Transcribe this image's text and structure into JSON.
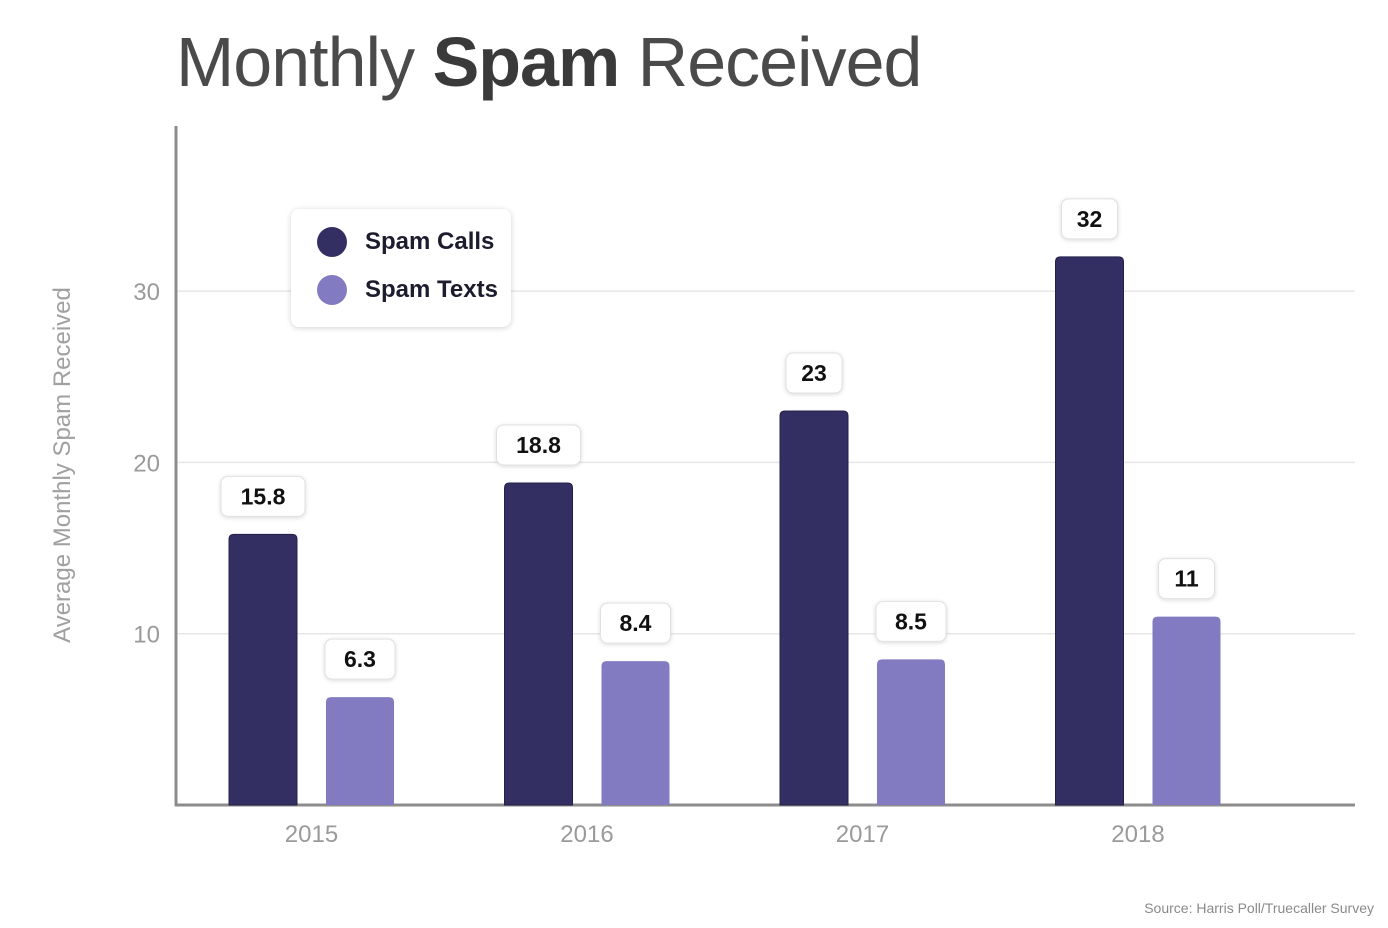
{
  "title": {
    "part1": "Monthly ",
    "part2": "Spam",
    "part3": " Received"
  },
  "source": "Source: Harris Poll/Truecaller Survey",
  "colors": {
    "calls": "#342f62",
    "texts": "#827bc1",
    "axis": "#8c8c8c",
    "grid": "#e6e6e6",
    "tick_text": "#9a9a9a"
  },
  "chart_data": {
    "type": "bar",
    "categories": [
      "2015",
      "2016",
      "2017",
      "2018"
    ],
    "series": [
      {
        "name": "Spam Calls",
        "values": [
          15.8,
          18.8,
          23,
          32
        ],
        "labels": [
          "15.8",
          "18.8",
          "23",
          "32"
        ]
      },
      {
        "name": "Spam Texts",
        "values": [
          6.3,
          8.4,
          8.5,
          11
        ],
        "labels": [
          "6.3",
          "8.4",
          "8.5",
          "11"
        ]
      }
    ],
    "ylabel": "Average Monthly Spam Received",
    "yticks": [
      "10",
      "20",
      "30"
    ],
    "ylim": [
      0,
      40
    ],
    "grid": true,
    "legend": "top-left"
  }
}
